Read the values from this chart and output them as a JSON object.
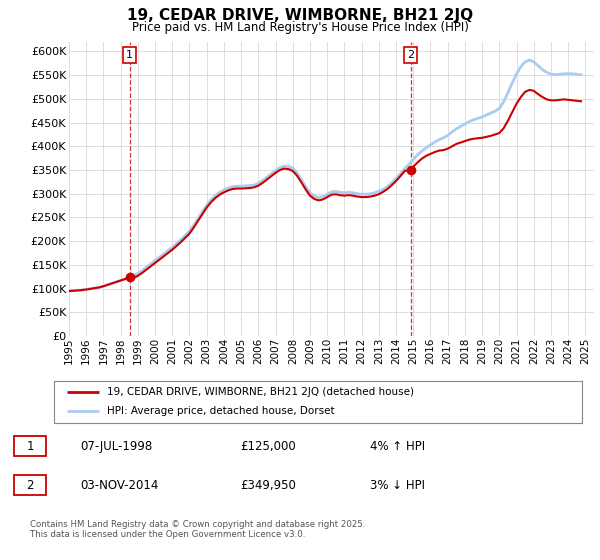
{
  "title": "19, CEDAR DRIVE, WIMBORNE, BH21 2JQ",
  "subtitle": "Price paid vs. HM Land Registry's House Price Index (HPI)",
  "ylim": [
    0,
    620000
  ],
  "yticks": [
    0,
    50000,
    100000,
    150000,
    200000,
    250000,
    300000,
    350000,
    400000,
    450000,
    500000,
    550000,
    600000
  ],
  "xlim_start": 1995.0,
  "xlim_end": 2025.5,
  "background_color": "#ffffff",
  "grid_color": "#dddddd",
  "hpi_color": "#aaccee",
  "price_color": "#cc0000",
  "sale1_x": 1998.52,
  "sale1_y": 125000,
  "sale2_x": 2014.84,
  "sale2_y": 349950,
  "legend_line1": "19, CEDAR DRIVE, WIMBORNE, BH21 2JQ (detached house)",
  "legend_line2": "HPI: Average price, detached house, Dorset",
  "footer": "Contains HM Land Registry data © Crown copyright and database right 2025.\nThis data is licensed under the Open Government Licence v3.0.",
  "xtick_years": [
    1995,
    1996,
    1997,
    1998,
    1999,
    2000,
    2001,
    2002,
    2003,
    2004,
    2005,
    2006,
    2007,
    2008,
    2009,
    2010,
    2011,
    2012,
    2013,
    2014,
    2015,
    2016,
    2017,
    2018,
    2019,
    2020,
    2021,
    2022,
    2023,
    2024,
    2025
  ],
  "hpi_data_x": [
    1995.0,
    1995.25,
    1995.5,
    1995.75,
    1996.0,
    1996.25,
    1996.5,
    1996.75,
    1997.0,
    1997.25,
    1997.5,
    1997.75,
    1998.0,
    1998.25,
    1998.5,
    1998.75,
    1999.0,
    1999.25,
    1999.5,
    1999.75,
    2000.0,
    2000.25,
    2000.5,
    2000.75,
    2001.0,
    2001.25,
    2001.5,
    2001.75,
    2002.0,
    2002.25,
    2002.5,
    2002.75,
    2003.0,
    2003.25,
    2003.5,
    2003.75,
    2004.0,
    2004.25,
    2004.5,
    2004.75,
    2005.0,
    2005.25,
    2005.5,
    2005.75,
    2006.0,
    2006.25,
    2006.5,
    2006.75,
    2007.0,
    2007.25,
    2007.5,
    2007.75,
    2008.0,
    2008.25,
    2008.5,
    2008.75,
    2009.0,
    2009.25,
    2009.5,
    2009.75,
    2010.0,
    2010.25,
    2010.5,
    2010.75,
    2011.0,
    2011.25,
    2011.5,
    2011.75,
    2012.0,
    2012.25,
    2012.5,
    2012.75,
    2013.0,
    2013.25,
    2013.5,
    2013.75,
    2014.0,
    2014.25,
    2014.5,
    2014.75,
    2015.0,
    2015.25,
    2015.5,
    2015.75,
    2016.0,
    2016.25,
    2016.5,
    2016.75,
    2017.0,
    2017.25,
    2017.5,
    2017.75,
    2018.0,
    2018.25,
    2018.5,
    2018.75,
    2019.0,
    2019.25,
    2019.5,
    2019.75,
    2020.0,
    2020.25,
    2020.5,
    2020.75,
    2021.0,
    2021.25,
    2021.5,
    2021.75,
    2022.0,
    2022.25,
    2022.5,
    2022.75,
    2023.0,
    2023.25,
    2023.5,
    2023.75,
    2024.0,
    2024.25,
    2024.5,
    2024.75
  ],
  "hpi_data_y": [
    95000,
    95500,
    96000,
    97000,
    98000,
    99500,
    101000,
    102500,
    105000,
    108000,
    111000,
    114000,
    117000,
    120000,
    123000,
    127000,
    132000,
    138000,
    145000,
    152000,
    159000,
    166000,
    173000,
    180000,
    187000,
    195000,
    203000,
    212000,
    221000,
    234000,
    248000,
    262000,
    276000,
    287000,
    296000,
    303000,
    308000,
    312000,
    315000,
    316000,
    316000,
    316500,
    317000,
    318000,
    322000,
    328000,
    335000,
    342000,
    349000,
    355000,
    358000,
    358000,
    354000,
    344000,
    330000,
    315000,
    302000,
    295000,
    292000,
    294000,
    299000,
    304000,
    305000,
    303000,
    302000,
    303000,
    302000,
    300000,
    299000,
    299000,
    300000,
    302000,
    305000,
    309000,
    315000,
    323000,
    332000,
    342000,
    353000,
    362000,
    372000,
    382000,
    390000,
    397000,
    403000,
    409000,
    414000,
    418000,
    423000,
    430000,
    437000,
    442000,
    447000,
    452000,
    456000,
    459000,
    462000,
    466000,
    470000,
    474000,
    480000,
    494000,
    513000,
    534000,
    553000,
    568000,
    578000,
    582000,
    578000,
    570000,
    562000,
    556000,
    552000,
    551000,
    552000,
    553000,
    553000,
    553000,
    552000,
    551000
  ],
  "price_data_x": [
    1995.0,
    1995.25,
    1995.5,
    1995.75,
    1996.0,
    1996.25,
    1996.5,
    1996.75,
    1997.0,
    1997.25,
    1997.5,
    1997.75,
    1998.0,
    1998.25,
    1998.5,
    1998.75,
    1999.0,
    1999.25,
    1999.5,
    1999.75,
    2000.0,
    2000.25,
    2000.5,
    2000.75,
    2001.0,
    2001.25,
    2001.5,
    2001.75,
    2002.0,
    2002.25,
    2002.5,
    2002.75,
    2003.0,
    2003.25,
    2003.5,
    2003.75,
    2004.0,
    2004.25,
    2004.5,
    2004.75,
    2005.0,
    2005.25,
    2005.5,
    2005.75,
    2006.0,
    2006.25,
    2006.5,
    2006.75,
    2007.0,
    2007.25,
    2007.5,
    2007.75,
    2008.0,
    2008.25,
    2008.5,
    2008.75,
    2009.0,
    2009.25,
    2009.5,
    2009.75,
    2010.0,
    2010.25,
    2010.5,
    2010.75,
    2011.0,
    2011.25,
    2011.5,
    2011.75,
    2012.0,
    2012.25,
    2012.5,
    2012.75,
    2013.0,
    2013.25,
    2013.5,
    2013.75,
    2014.0,
    2014.25,
    2014.5,
    2014.75,
    2015.0,
    2015.25,
    2015.5,
    2015.75,
    2016.0,
    2016.25,
    2016.5,
    2016.75,
    2017.0,
    2017.25,
    2017.5,
    2017.75,
    2018.0,
    2018.25,
    2018.5,
    2018.75,
    2019.0,
    2019.25,
    2019.5,
    2019.75,
    2020.0,
    2020.25,
    2020.5,
    2020.75,
    2021.0,
    2021.25,
    2021.5,
    2021.75,
    2022.0,
    2022.25,
    2022.5,
    2022.75,
    2023.0,
    2023.25,
    2023.5,
    2023.75,
    2024.0,
    2024.25,
    2024.5,
    2024.75
  ],
  "price_data_y": [
    95000,
    95500,
    96000,
    97000,
    98000,
    99500,
    101000,
    102500,
    105000,
    108000,
    111000,
    114000,
    117000,
    120000,
    125000,
    122000,
    127000,
    133000,
    140000,
    147000,
    154000,
    161000,
    168000,
    175000,
    182000,
    190000,
    198000,
    207000,
    216000,
    229000,
    243000,
    257000,
    271000,
    282000,
    291000,
    298000,
    303000,
    307000,
    310000,
    311000,
    311000,
    311500,
    312000,
    313500,
    317000,
    323000,
    330000,
    337000,
    344000,
    350000,
    353000,
    352000,
    348000,
    338000,
    324000,
    309000,
    296000,
    289000,
    286000,
    288000,
    293000,
    298000,
    299000,
    297000,
    296000,
    297000,
    296000,
    294000,
    293000,
    293000,
    294000,
    296000,
    299000,
    304000,
    310000,
    318000,
    327000,
    337000,
    348000,
    349950,
    357000,
    366000,
    374000,
    380000,
    384000,
    388000,
    391000,
    392000,
    395000,
    400000,
    405000,
    408000,
    411000,
    414000,
    416000,
    417000,
    418000,
    420000,
    422000,
    425000,
    428000,
    438000,
    454000,
    472000,
    490000,
    504000,
    515000,
    519000,
    517000,
    510000,
    504000,
    499000,
    497000,
    497000,
    498000,
    499000,
    498000,
    497000,
    496000,
    495000
  ]
}
